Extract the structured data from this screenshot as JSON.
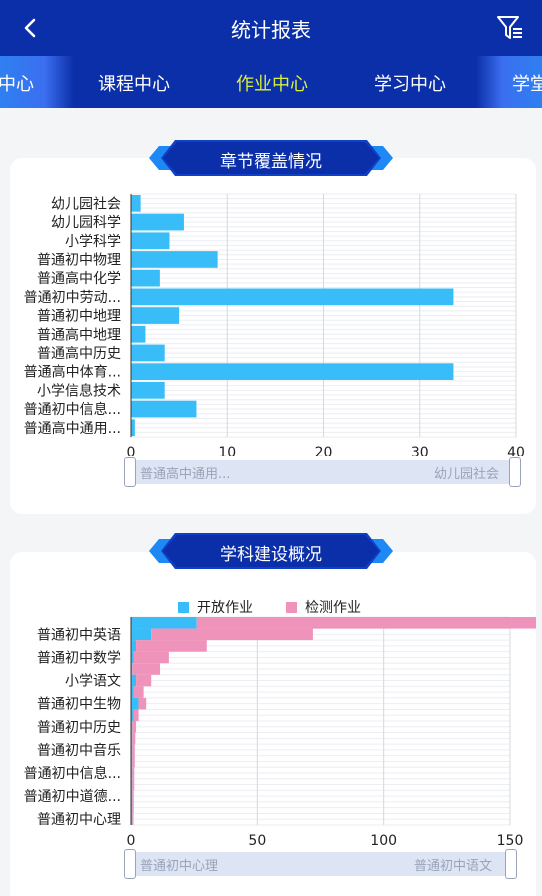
{
  "header": {
    "title": "统计报表",
    "back_icon": "chevron-left-icon",
    "filter_icon": "filter-list-icon"
  },
  "tabs": [
    {
      "label": "中心",
      "active": false
    },
    {
      "label": "课程中心",
      "active": false
    },
    {
      "label": "作业中心",
      "active": true
    },
    {
      "label": "学习中心",
      "active": false
    },
    {
      "label": "学堂",
      "active": false
    }
  ],
  "colors": {
    "primary": "#0b2fa8",
    "accent": "#d8ef3e",
    "bar_blue": "#38bdf8",
    "bar_pink": "#f093bb"
  },
  "coverage": {
    "title": "章节覆盖情况",
    "slider_start": "普通高中通用...",
    "slider_end": "幼儿园社会"
  },
  "subject": {
    "title": "学科建设概况",
    "legend": [
      "开放作业",
      "检测作业"
    ],
    "slider_start": "普通初中心理",
    "slider_end": "普通初中语文"
  },
  "chart_data": [
    {
      "type": "bar",
      "orientation": "horizontal",
      "title": "章节覆盖情况",
      "categories": [
        "幼儿园社会",
        "幼儿园科学",
        "小学科学",
        "普通初中物理",
        "普通高中化学",
        "普通初中劳动...",
        "普通初中地理",
        "普通高中地理",
        "普通高中历史",
        "普通高中体育...",
        "小学信息技术",
        "普通初中信息...",
        "普通高中通用..."
      ],
      "values": [
        1,
        5.5,
        4,
        9,
        3,
        33.5,
        5,
        1.5,
        3.5,
        33.5,
        3.5,
        6.8,
        0.4
      ],
      "xlim": [
        0,
        40
      ],
      "xticks": [
        0,
        10,
        20,
        30,
        40
      ],
      "grid": true
    },
    {
      "type": "bar",
      "orientation": "horizontal",
      "title": "学科建设概况",
      "categories_top": [
        "",
        "普通初中英语",
        "",
        "普通初中数学",
        "",
        "小学语文",
        "",
        "普通初中生物",
        "",
        "普通初中历史",
        "",
        "普通初中音乐",
        "",
        "普通初中信息...",
        "",
        "普通初中道德...",
        "",
        "普通初中心理"
      ],
      "visible_labels": [
        "普通初中英语",
        "普通初中数学",
        "小学语文",
        "普通初中生物",
        "普通初中历史",
        "普通初中音乐",
        "普通初中信息...",
        "普通初中道德...",
        "普通初中心理"
      ],
      "series": [
        {
          "name": "开放作业",
          "values": [
            26,
            8,
            2,
            1,
            0.5,
            2,
            1,
            3,
            1,
            0.5,
            0.5,
            0.5,
            0.5,
            0.5,
            0.5,
            0.5,
            0.5,
            0.5
          ]
        },
        {
          "name": "检测作业",
          "values": [
            145,
            64,
            28,
            14,
            11,
            6,
            4,
            3,
            2,
            1.5,
            1.2,
            1,
            1,
            0.8,
            0.8,
            0.6,
            0.6,
            0.5
          ]
        }
      ],
      "xlim": [
        0,
        150
      ],
      "xticks": [
        0,
        50,
        100,
        150
      ],
      "legend": "top",
      "grid": true
    }
  ]
}
